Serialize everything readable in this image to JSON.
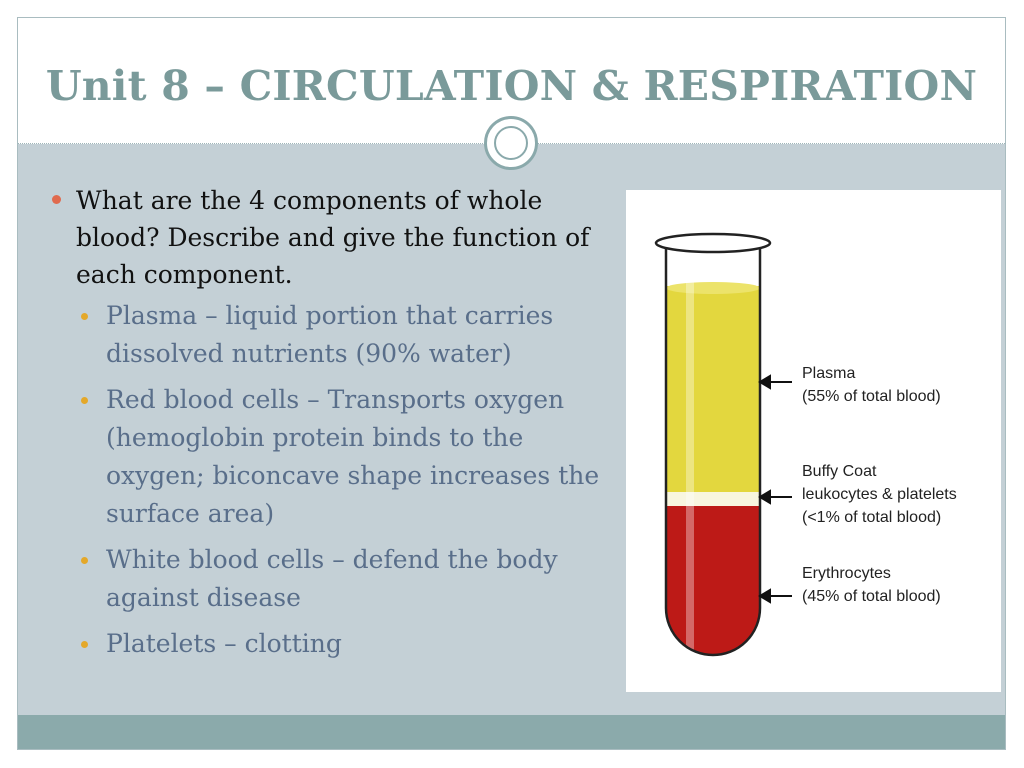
{
  "slide": {
    "title": "Unit 8 – CIRCULATION & RESPIRATION",
    "main_bullet": "What are the 4 components of whole blood? Describe and give the function of each component.",
    "sub_bullets": [
      "Plasma – liquid portion that carries dissolved nutrients (90% water)",
      "Red blood cells – Transports oxygen (hemoglobin protein binds to the oxygen; biconcave shape increases the surface area)",
      "White blood cells – defend the body against disease",
      "Platelets – clotting"
    ]
  },
  "figure": {
    "plasma_name": "Plasma",
    "plasma_pct": "(55% of total blood)",
    "buffy_name": "Buffy Coat",
    "buffy_desc": "leukocytes & platelets",
    "buffy_pct": "(<1% of total blood)",
    "ery_name": "Erythrocytes",
    "ery_pct": "(45% of total blood)"
  },
  "colors": {
    "title": "#7a9a9a",
    "plasma": "#e3d73e",
    "erythrocytes": "#bd1a17",
    "bullet_main": "#e06a4e",
    "bullet_sub": "#e4a82a"
  }
}
